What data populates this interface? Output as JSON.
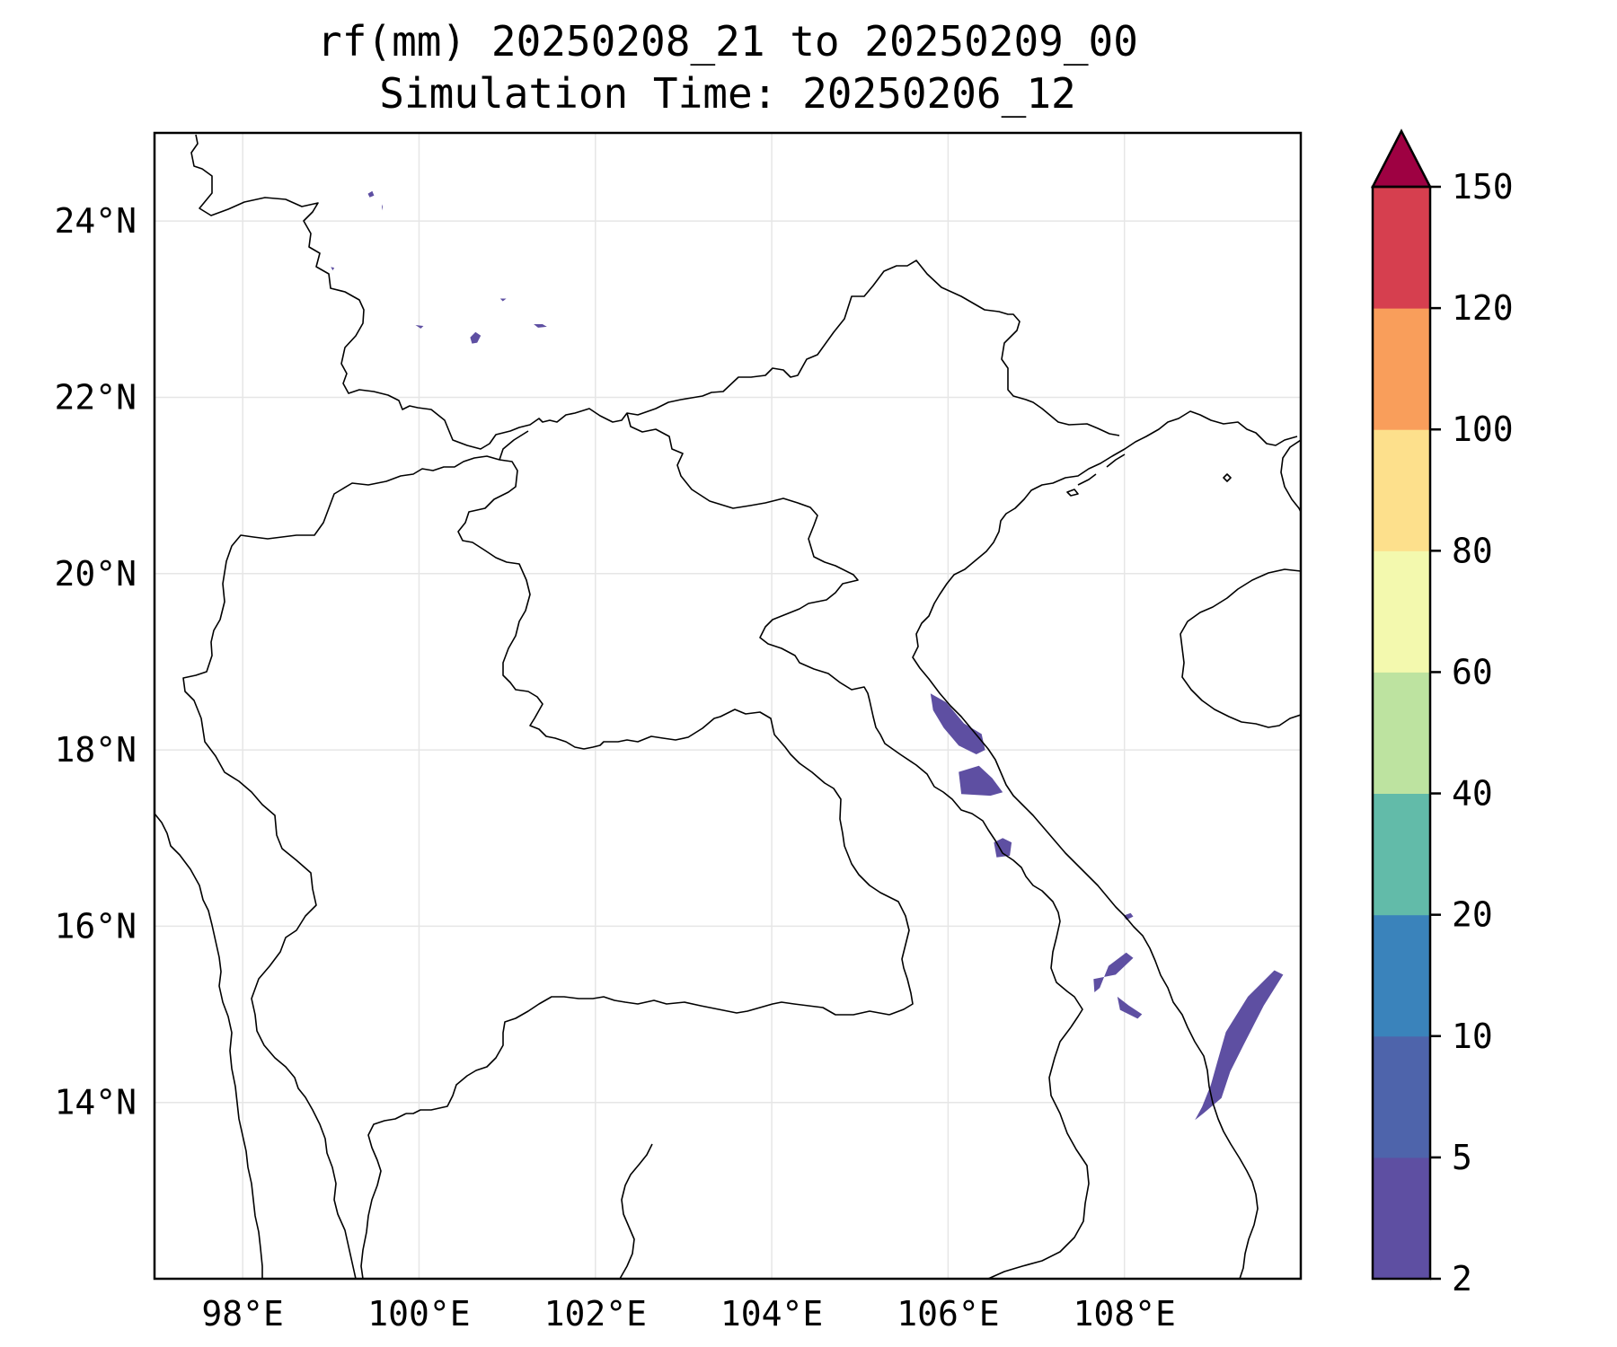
{
  "title": {
    "line1": "rf(mm) 20250208_21 to 20250209_00",
    "line2": "Simulation Time: 20250206_12"
  },
  "map": {
    "lon_range": [
      97.0,
      110.0
    ],
    "lat_range": [
      12.0,
      25.0
    ],
    "gridlines": true,
    "lon_ticks": [
      98,
      100,
      102,
      104,
      106,
      108
    ],
    "lat_ticks": [
      14,
      16,
      18,
      20,
      22,
      24
    ],
    "lon_tick_labels": [
      "98°E",
      "100°E",
      "102°E",
      "104°E",
      "106°E",
      "108°E"
    ],
    "lat_tick_labels": [
      "14°N",
      "16°N",
      "18°N",
      "20°N",
      "22°N",
      "24°N"
    ],
    "rain_color": "#5e4fa2"
  },
  "colorbar": {
    "extend": "max",
    "orientation": "vertical",
    "placement": "right",
    "levels": [
      "2",
      "5",
      "10",
      "20",
      "40",
      "60",
      "80",
      "100",
      "120",
      "150"
    ],
    "colors": [
      "#5e4fa2",
      "#4e64ab",
      "#3a83bb",
      "#62bba9",
      "#bde3a0",
      "#f3f9ae",
      "#fde08c",
      "#f99e5b",
      "#d63f4f",
      "#9e0142"
    ]
  },
  "rain_cells": [
    {
      "name": "rain-cell-yunnan-1",
      "lonlat": [
        [
          99.42,
          24.31
        ],
        [
          99.47,
          24.34
        ],
        [
          99.49,
          24.29
        ],
        [
          99.44,
          24.27
        ]
      ]
    },
    {
      "name": "rain-cell-yunnan-2",
      "lonlat": [
        [
          99.58,
          24.19
        ],
        [
          99.59,
          24.16
        ],
        [
          99.58,
          24.12
        ]
      ]
    },
    {
      "name": "rain-cell-yunnan-3",
      "lonlat": [
        [
          99.0,
          23.48
        ],
        [
          99.04,
          23.47
        ],
        [
          99.02,
          23.44
        ]
      ]
    },
    {
      "name": "rain-cell-yunnan-4",
      "lonlat": [
        [
          99.96,
          22.82
        ],
        [
          100.05,
          22.81
        ],
        [
          100.02,
          22.78
        ]
      ]
    },
    {
      "name": "rain-cell-yunnan-5",
      "lonlat": [
        [
          100.58,
          22.68
        ],
        [
          100.64,
          22.74
        ],
        [
          100.7,
          22.7
        ],
        [
          100.66,
          22.62
        ],
        [
          100.6,
          22.61
        ]
      ]
    },
    {
      "name": "rain-cell-yunnan-6",
      "lonlat": [
        [
          101.3,
          22.83
        ],
        [
          101.4,
          22.83
        ],
        [
          101.45,
          22.8
        ],
        [
          101.35,
          22.79
        ]
      ]
    },
    {
      "name": "rain-cell-yunnan-7",
      "lonlat": [
        [
          100.92,
          23.12
        ],
        [
          100.99,
          23.12
        ],
        [
          100.95,
          23.09
        ]
      ]
    },
    {
      "name": "rain-cell-nghe-an-coast",
      "lonlat": [
        [
          105.8,
          18.64
        ],
        [
          105.98,
          18.54
        ],
        [
          106.18,
          18.3
        ],
        [
          106.38,
          18.18
        ],
        [
          106.42,
          18.0
        ],
        [
          106.32,
          17.95
        ],
        [
          106.12,
          18.05
        ],
        [
          105.95,
          18.25
        ],
        [
          105.83,
          18.45
        ]
      ]
    },
    {
      "name": "rain-cell-quang-binh",
      "lonlat": [
        [
          106.12,
          17.75
        ],
        [
          106.35,
          17.82
        ],
        [
          106.5,
          17.68
        ],
        [
          106.62,
          17.52
        ],
        [
          106.48,
          17.48
        ],
        [
          106.15,
          17.5
        ]
      ]
    },
    {
      "name": "rain-cell-quang-tri",
      "lonlat": [
        [
          106.52,
          16.95
        ],
        [
          106.62,
          17.0
        ],
        [
          106.72,
          16.95
        ],
        [
          106.7,
          16.8
        ],
        [
          106.55,
          16.78
        ]
      ]
    },
    {
      "name": "rain-cell-thua-thien-islet",
      "lonlat": [
        [
          107.99,
          16.12
        ],
        [
          108.07,
          16.15
        ],
        [
          108.1,
          16.11
        ],
        [
          108.02,
          16.07
        ]
      ]
    },
    {
      "name": "rain-cell-quang-nam-1",
      "lonlat": [
        [
          107.65,
          15.4
        ],
        [
          107.9,
          15.45
        ],
        [
          108.1,
          15.64
        ],
        [
          108.02,
          15.7
        ],
        [
          107.82,
          15.55
        ],
        [
          107.72,
          15.3
        ],
        [
          107.66,
          15.25
        ]
      ]
    },
    {
      "name": "rain-cell-quang-nam-2",
      "lonlat": [
        [
          107.92,
          15.2
        ],
        [
          108.05,
          15.1
        ],
        [
          108.2,
          15.0
        ],
        [
          108.15,
          14.95
        ],
        [
          107.95,
          15.05
        ]
      ]
    },
    {
      "name": "rain-cell-central-highlands-band",
      "lonlat": [
        [
          108.9,
          13.88
        ],
        [
          109.1,
          14.05
        ],
        [
          109.2,
          14.35
        ],
        [
          109.35,
          14.65
        ],
        [
          109.58,
          15.1
        ],
        [
          109.8,
          15.45
        ],
        [
          109.7,
          15.5
        ],
        [
          109.4,
          15.2
        ],
        [
          109.15,
          14.8
        ],
        [
          109.05,
          14.45
        ],
        [
          108.98,
          14.2
        ],
        [
          108.88,
          13.95
        ],
        [
          108.8,
          13.8
        ]
      ]
    }
  ]
}
